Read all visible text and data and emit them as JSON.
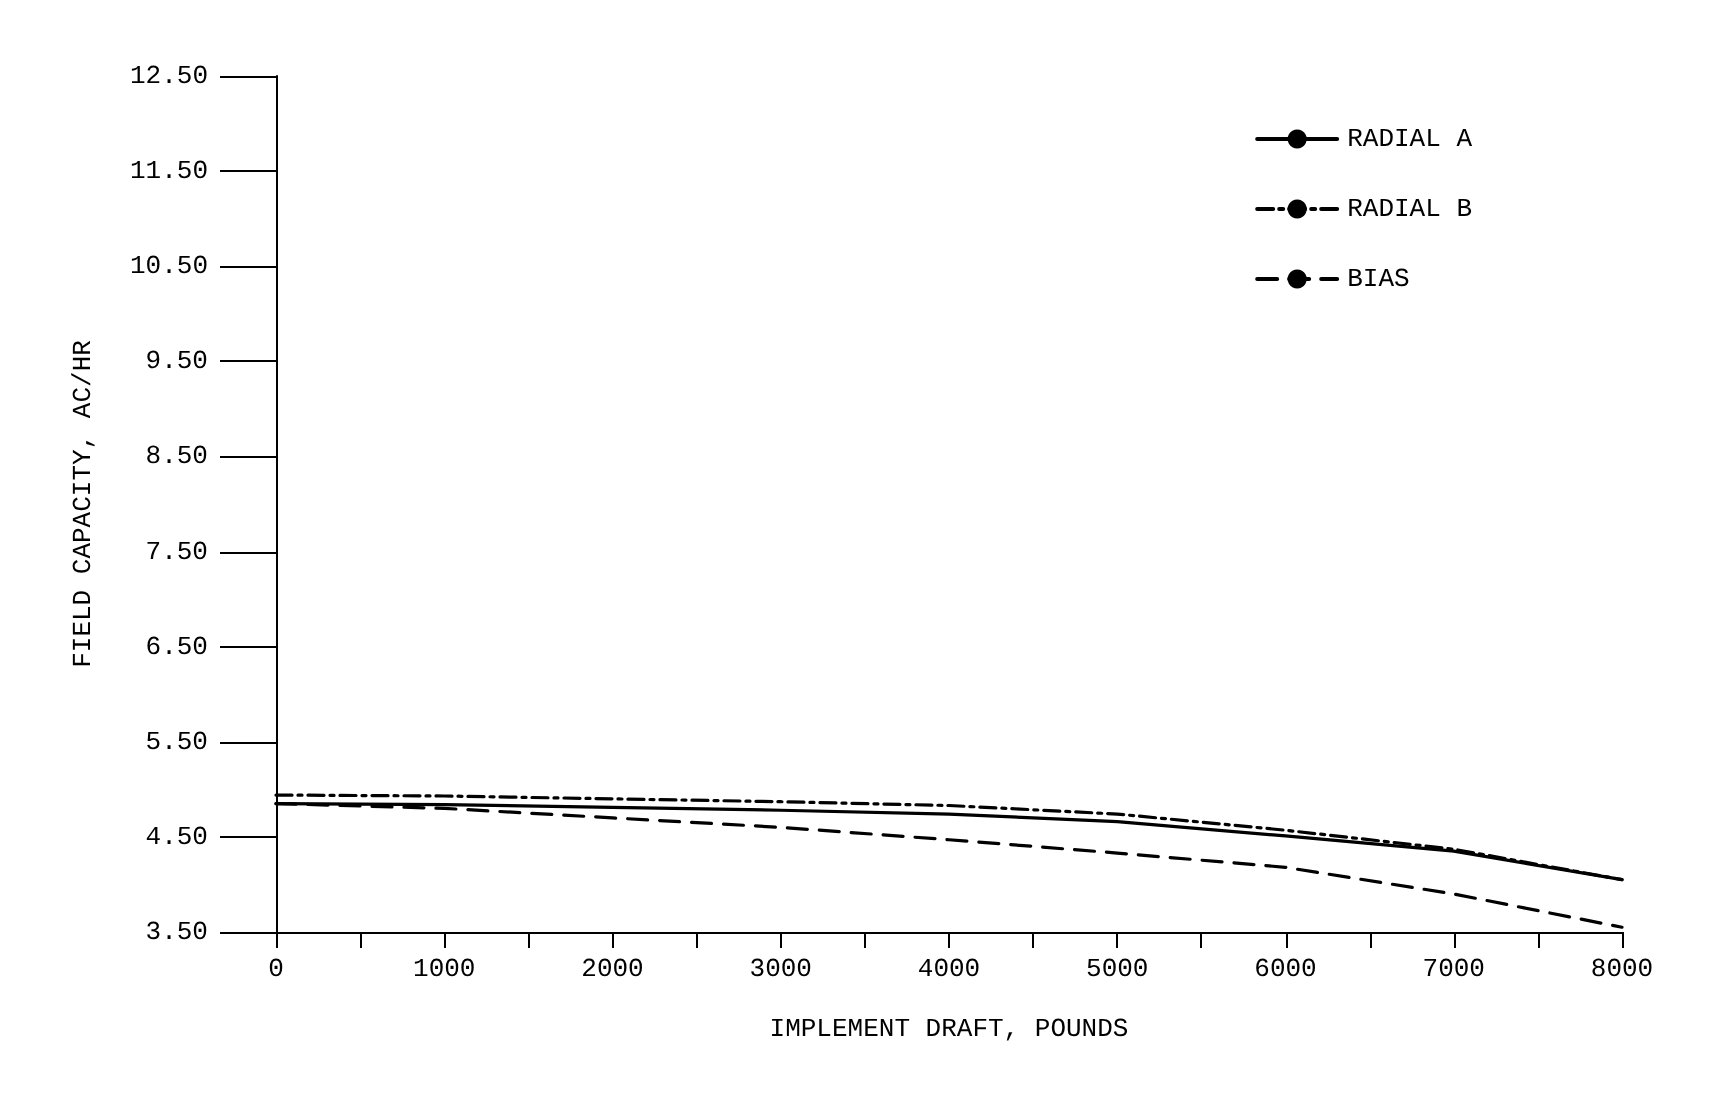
{
  "chart_data": {
    "type": "line",
    "xlabel": "IMPLEMENT DRAFT, POUNDS",
    "ylabel": "FIELD CAPACITY, AC/HR",
    "x": [
      0,
      1000,
      2000,
      3000,
      4000,
      5000,
      6000,
      7000,
      8000
    ],
    "series": [
      {
        "name": "RADIAL A",
        "color": "#000000",
        "line_style": "solid",
        "values": [
          4.85,
          4.84,
          4.81,
          4.78,
          4.74,
          4.66,
          4.51,
          4.35,
          4.05
        ]
      },
      {
        "name": "RADIAL B",
        "color": "#000000",
        "line_style": "dotted",
        "values": [
          4.94,
          4.93,
          4.9,
          4.87,
          4.83,
          4.74,
          4.57,
          4.37,
          4.05
        ]
      },
      {
        "name": "BIAS",
        "color": "#000000",
        "line_style": "dashed",
        "values": [
          4.85,
          4.8,
          4.7,
          4.6,
          4.47,
          4.33,
          4.18,
          3.9,
          3.55
        ]
      }
    ],
    "xlim": [
      0,
      8000
    ],
    "ylim": [
      3.5,
      12.5
    ],
    "xticks": [
      0,
      {
        "value": 500,
        "label": null
      },
      1000,
      {
        "value": 1500,
        "label": null
      },
      2000,
      {
        "value": 2500,
        "label": null
      },
      3000,
      {
        "value": 3500,
        "label": null
      },
      4000,
      {
        "value": 4500,
        "label": null
      },
      5000,
      {
        "value": 5500,
        "label": null
      },
      6000,
      {
        "value": 6500,
        "label": null
      },
      7000,
      {
        "value": 7500,
        "label": null
      },
      8000
    ],
    "yticks": [
      {
        "value": 3.5,
        "label": "3.50"
      },
      {
        "value": 4.5,
        "label": "4.50"
      },
      {
        "value": 5.5,
        "label": "5.50"
      },
      {
        "value": 6.5,
        "label": "6.50"
      },
      {
        "value": 7.5,
        "label": "7.50"
      },
      {
        "value": 8.5,
        "label": "8.50"
      },
      {
        "value": 9.5,
        "label": "9.50"
      },
      {
        "value": 10.5,
        "label": "10.50"
      },
      {
        "value": 11.5,
        "label": "11.50"
      },
      {
        "value": 12.5,
        "label": "12.50"
      }
    ],
    "legend": "top right",
    "grid": false,
    "marker": "none"
  }
}
